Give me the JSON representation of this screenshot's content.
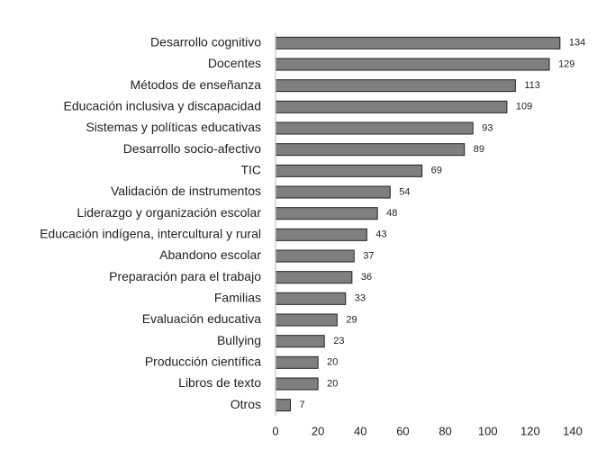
{
  "chart_data": {
    "type": "barh",
    "categories": [
      "Desarrollo cognitivo",
      "Docentes",
      "Métodos de enseñanza",
      "Educación inclusiva y discapacidad",
      "Sistemas y políticas educativas",
      "Desarrollo socio-afectivo",
      "TIC",
      "Validación de instrumentos",
      "Liderazgo y organización escolar",
      "Educación indígena, intercultural y rural",
      "Abandono escolar",
      "Preparación para el trabajo",
      "Familias",
      "Evaluación educativa",
      "Bullying",
      "Producción científica",
      "Libros de texto",
      "Otros"
    ],
    "values": [
      134,
      129,
      113,
      109,
      93,
      89,
      69,
      54,
      48,
      43,
      37,
      36,
      33,
      29,
      23,
      20,
      20,
      7
    ],
    "color": "#7f7f7f",
    "xlim": [
      0,
      140
    ],
    "xticks": [
      0,
      20,
      40,
      60,
      80,
      100,
      120,
      140
    ],
    "grid": false
  }
}
